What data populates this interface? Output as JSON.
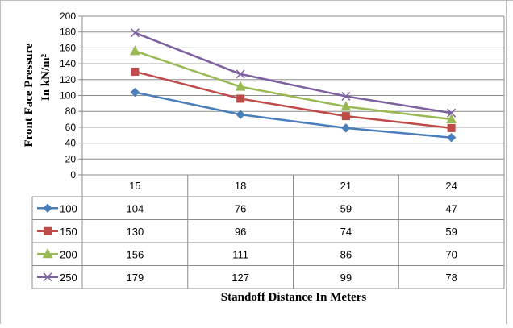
{
  "chart_data": {
    "type": "line",
    "title": "",
    "xlabel": "Standoff Distance In Meters",
    "ylabel_line1": "Front  Face Pressure",
    "ylabel_line2": "In kN/m²",
    "categories": [
      "15",
      "18",
      "21",
      "24"
    ],
    "ylim": [
      0,
      200
    ],
    "yticks": [
      0,
      20,
      40,
      60,
      80,
      100,
      120,
      140,
      160,
      180,
      200
    ],
    "grid": true,
    "legend": "data-table",
    "series": [
      {
        "name": "100",
        "values": [
          104,
          76,
          59,
          47
        ],
        "color": "#4a7ebb",
        "marker": "diamond"
      },
      {
        "name": "150",
        "values": [
          130,
          96,
          74,
          59
        ],
        "color": "#be4b48",
        "marker": "square"
      },
      {
        "name": "200",
        "values": [
          156,
          111,
          86,
          70
        ],
        "color": "#98b954",
        "marker": "triangle"
      },
      {
        "name": "250",
        "values": [
          179,
          127,
          99,
          78
        ],
        "color": "#7d60a0",
        "marker": "x"
      }
    ]
  }
}
